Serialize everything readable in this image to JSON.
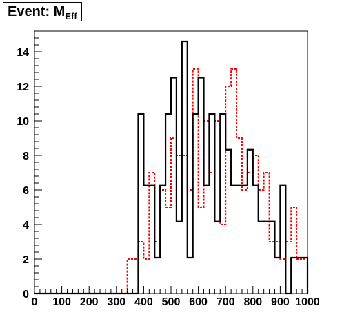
{
  "chart_data": {
    "type": "histogram-step",
    "title_main": "Event: M",
    "title_sub": "Eff",
    "xlim": [
      0,
      1000
    ],
    "ylim": [
      0,
      15.2
    ],
    "x_ticks": [
      0,
      100,
      200,
      300,
      400,
      500,
      600,
      700,
      800,
      900,
      1000
    ],
    "y_ticks": [
      0,
      2,
      4,
      6,
      8,
      10,
      12,
      14
    ],
    "bin_edges": [
      0,
      20,
      40,
      60,
      80,
      100,
      120,
      140,
      160,
      180,
      200,
      220,
      240,
      260,
      280,
      300,
      320,
      340,
      360,
      380,
      400,
      420,
      440,
      460,
      480,
      500,
      520,
      540,
      560,
      580,
      600,
      620,
      640,
      660,
      680,
      700,
      720,
      740,
      760,
      780,
      800,
      820,
      840,
      860,
      880,
      900,
      920,
      940,
      960,
      980,
      1000
    ],
    "series": [
      {
        "color": "#000000",
        "dashed": false,
        "values": [
          0,
          0,
          0,
          0,
          0,
          0,
          0,
          0,
          0,
          0,
          0,
          0,
          0,
          0,
          0,
          0,
          0,
          0,
          0,
          10.4,
          6.25,
          6.25,
          2.08,
          6.25,
          10.4,
          12.5,
          4.17,
          14.6,
          2.08,
          10.4,
          12.5,
          6.25,
          10.4,
          4.17,
          10.4,
          8.33,
          6.25,
          6.25,
          6.25,
          8.33,
          6.25,
          4.17,
          4.17,
          4.17,
          2.08,
          6.25,
          0,
          2.08,
          2.08,
          2.08
        ]
      },
      {
        "color": "#ff0000",
        "dashed": true,
        "values": [
          0,
          0,
          0,
          0,
          0,
          0,
          0,
          0,
          0,
          0,
          0,
          0,
          0,
          0,
          0,
          0,
          0,
          2,
          2,
          3,
          2,
          7,
          3,
          6,
          5,
          9,
          8,
          8,
          6,
          13,
          5,
          10,
          7,
          10,
          4,
          12,
          13,
          9,
          6,
          7,
          8,
          6,
          7,
          3,
          3,
          2,
          3,
          5,
          2,
          2
        ]
      }
    ]
  }
}
